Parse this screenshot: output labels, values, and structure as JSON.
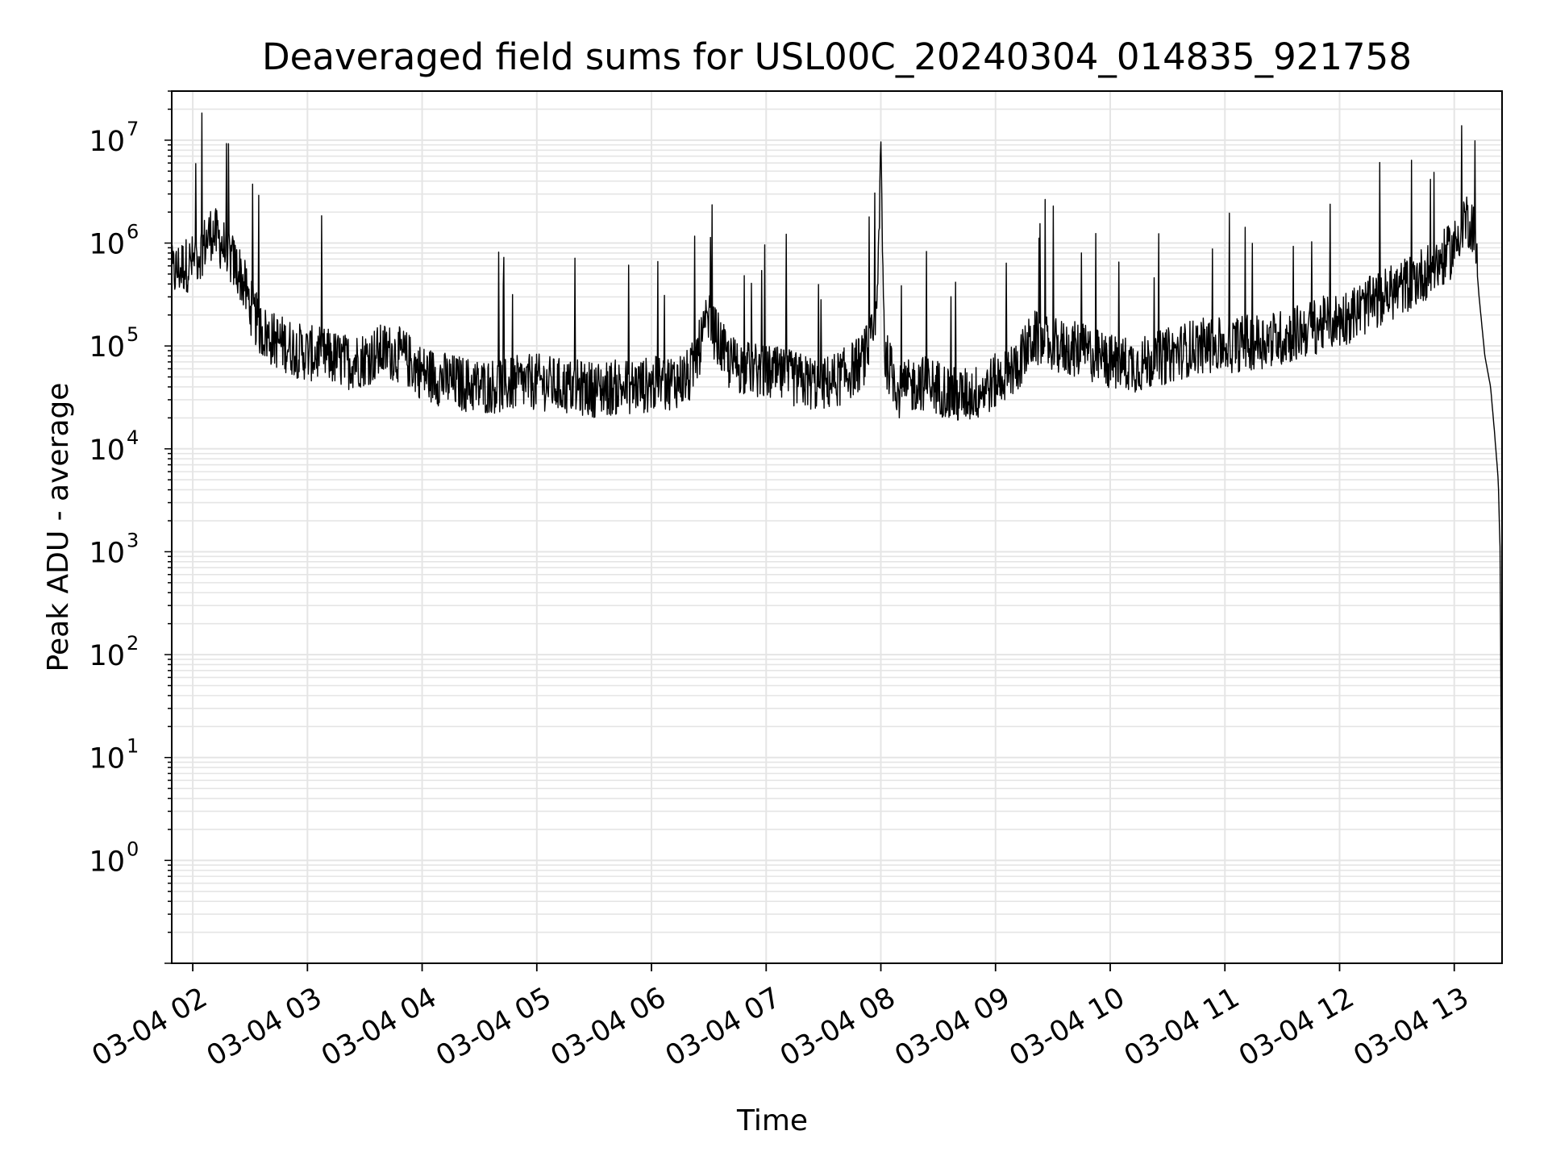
{
  "chart_data": {
    "type": "line",
    "title": "Deaveraged field sums for USL00C_20240304_014835_921758",
    "xlabel": "Time",
    "ylabel": "Peak ADU - average",
    "yscale": "log",
    "grid": true,
    "line_color": "#000000",
    "grid_color": "#e5e5e5",
    "xlim": [
      "2024-03-04T01:49",
      "2024-03-04T13:25"
    ],
    "ylim": [
      0.1,
      30000000
    ],
    "x_ticks": [
      {
        "t": "2024-03-04T02:00",
        "label": "03-04 02"
      },
      {
        "t": "2024-03-04T03:00",
        "label": "03-04 03"
      },
      {
        "t": "2024-03-04T04:00",
        "label": "03-04 04"
      },
      {
        "t": "2024-03-04T05:00",
        "label": "03-04 05"
      },
      {
        "t": "2024-03-04T06:00",
        "label": "03-04 06"
      },
      {
        "t": "2024-03-04T07:00",
        "label": "03-04 07"
      },
      {
        "t": "2024-03-04T08:00",
        "label": "03-04 08"
      },
      {
        "t": "2024-03-04T09:00",
        "label": "03-04 09"
      },
      {
        "t": "2024-03-04T10:00",
        "label": "03-04 10"
      },
      {
        "t": "2024-03-04T11:00",
        "label": "03-04 11"
      },
      {
        "t": "2024-03-04T12:00",
        "label": "03-04 12"
      },
      {
        "t": "2024-03-04T13:00",
        "label": "03-04 13"
      }
    ],
    "y_ticks": [
      {
        "value": 1,
        "base": "10",
        "exp": "0"
      },
      {
        "value": 10,
        "base": "10",
        "exp": "1"
      },
      {
        "value": 100,
        "base": "10",
        "exp": "2"
      },
      {
        "value": 1000,
        "base": "10",
        "exp": "3"
      },
      {
        "value": 10000,
        "base": "10",
        "exp": "4"
      },
      {
        "value": 100000,
        "base": "10",
        "exp": "5"
      },
      {
        "value": 1000000,
        "base": "10",
        "exp": "6"
      },
      {
        "value": 10000000,
        "base": "10",
        "exp": "7"
      }
    ],
    "series": [
      {
        "x": [
          "2024-03-04T01:49",
          "2024-03-04T01:55",
          "2024-03-04T02:00",
          "2024-03-04T02:05",
          "2024-03-04T02:10",
          "2024-03-04T02:15",
          "2024-03-04T02:20",
          "2024-03-04T02:25",
          "2024-03-04T02:30",
          "2024-03-04T02:35",
          "2024-03-04T02:40",
          "2024-03-04T02:45",
          "2024-03-04T02:50",
          "2024-03-04T02:55",
          "2024-03-04T03:00",
          "2024-03-04T03:10",
          "2024-03-04T03:20",
          "2024-03-04T03:30",
          "2024-03-04T03:40",
          "2024-03-04T03:50",
          "2024-03-04T04:00",
          "2024-03-04T04:15",
          "2024-03-04T04:30",
          "2024-03-04T04:45",
          "2024-03-04T05:00",
          "2024-03-04T05:15",
          "2024-03-04T05:30",
          "2024-03-04T05:45",
          "2024-03-04T06:00",
          "2024-03-04T06:10",
          "2024-03-04T06:20",
          "2024-03-04T06:30",
          "2024-03-04T06:40",
          "2024-03-04T06:50",
          "2024-03-04T07:00",
          "2024-03-04T07:10",
          "2024-03-04T07:20",
          "2024-03-04T07:30",
          "2024-03-04T07:40",
          "2024-03-04T07:50",
          "2024-03-04T07:56",
          "2024-03-04T07:58",
          "2024-03-04T08:00",
          "2024-03-04T08:02",
          "2024-03-04T08:10",
          "2024-03-04T08:20",
          "2024-03-04T08:30",
          "2024-03-04T08:40",
          "2024-03-04T08:50",
          "2024-03-04T09:00",
          "2024-03-04T09:10",
          "2024-03-04T09:20",
          "2024-03-04T09:30",
          "2024-03-04T09:45",
          "2024-03-04T10:00",
          "2024-03-04T10:15",
          "2024-03-04T10:30",
          "2024-03-04T10:45",
          "2024-03-04T11:00",
          "2024-03-04T11:15",
          "2024-03-04T11:30",
          "2024-03-04T11:45",
          "2024-03-04T12:00",
          "2024-03-04T12:10",
          "2024-03-04T12:20",
          "2024-03-04T12:30",
          "2024-03-04T12:40",
          "2024-03-04T12:50",
          "2024-03-04T13:00",
          "2024-03-04T13:05",
          "2024-03-04T13:10",
          "2024-03-04T13:13",
          "2024-03-04T13:16",
          "2024-03-04T13:19",
          "2024-03-04T13:21",
          "2024-03-04T13:23",
          "2024-03-04T13:24",
          "2024-03-04T13:25"
        ],
        "y": [
          500000,
          600000,
          650000,
          900000,
          1300000,
          1000000,
          700000,
          500000,
          250000,
          150000,
          120000,
          110000,
          100000,
          90000,
          85000,
          80000,
          70000,
          75000,
          90000,
          80000,
          55000,
          45000,
          40000,
          42000,
          45000,
          40000,
          38000,
          40000,
          42000,
          45000,
          50000,
          180000,
          70000,
          60000,
          55000,
          50000,
          45000,
          42000,
          50000,
          70000,
          120000,
          200000,
          9000000,
          80000,
          35000,
          45000,
          40000,
          32000,
          35000,
          45000,
          60000,
          120000,
          100000,
          90000,
          70000,
          65000,
          80000,
          100000,
          100000,
          110000,
          120000,
          150000,
          180000,
          220000,
          280000,
          350000,
          450000,
          600000,
          900000,
          1800000,
          1500000,
          300000,
          80000,
          40000,
          15000,
          5000,
          1000,
          0.5
        ]
      }
    ]
  }
}
